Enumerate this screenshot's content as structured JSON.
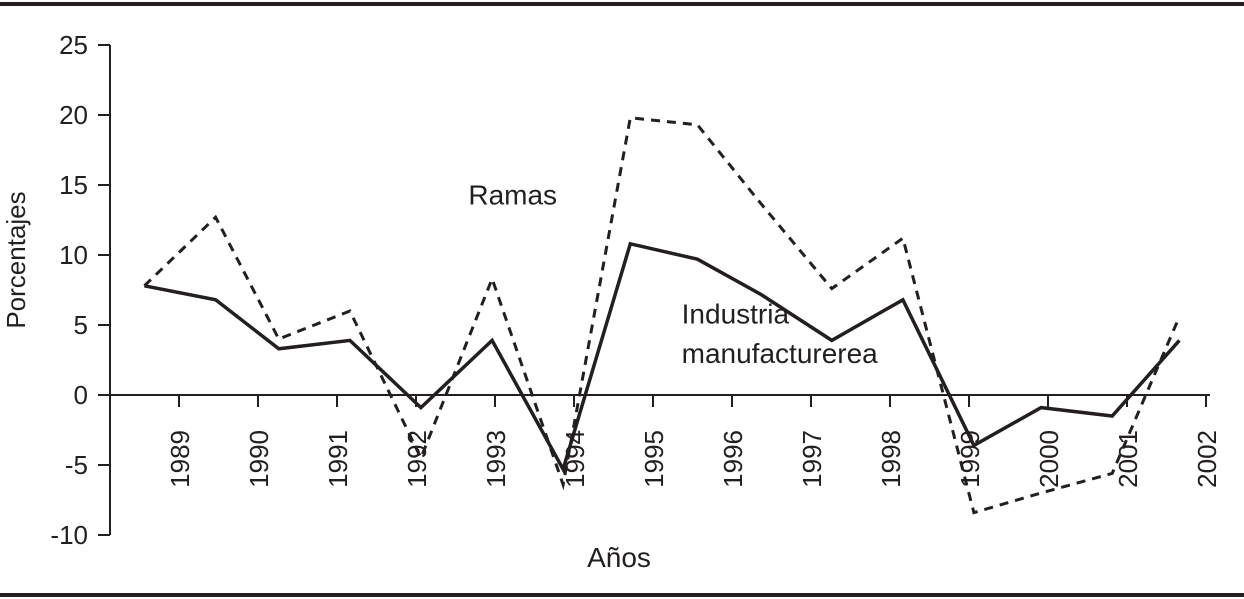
{
  "chart_data": {
    "type": "line",
    "title": "",
    "xlabel": "Años",
    "ylabel": "Porcentajes",
    "ylim": [
      -10,
      25
    ],
    "yticks": [
      25,
      20,
      15,
      10,
      5,
      0,
      -5,
      -10
    ],
    "xticks": [
      "1989",
      "1990",
      "1991",
      "1992",
      "1993",
      "1994",
      "1995",
      "1996",
      "1997",
      "1998",
      "1999",
      "2000",
      "2001",
      "2002"
    ],
    "grid": false,
    "series": [
      {
        "name": "Industria manufacturerea",
        "style": "solid",
        "color": "#231f20",
        "points": [
          [
            1988.55,
            7.8
          ],
          [
            1989.45,
            6.8
          ],
          [
            1990.25,
            3.3
          ],
          [
            1991.15,
            3.9
          ],
          [
            1992.05,
            -0.9
          ],
          [
            1992.95,
            3.9
          ],
          [
            1993.85,
            -5.3
          ],
          [
            1994.7,
            10.8
          ],
          [
            1995.55,
            9.7
          ],
          [
            1996.35,
            7.2
          ],
          [
            1997.25,
            3.9
          ],
          [
            1998.15,
            6.8
          ],
          [
            1999.05,
            -3.6
          ],
          [
            1999.9,
            -0.9
          ],
          [
            2000.8,
            -1.5
          ],
          [
            2001.65,
            3.9
          ]
        ]
      },
      {
        "name": "Ramas",
        "style": "dashed",
        "color": "#231f20",
        "points": [
          [
            1988.55,
            7.8
          ],
          [
            1989.45,
            12.7
          ],
          [
            1990.25,
            4.0
          ],
          [
            1991.15,
            6.0
          ],
          [
            1992.05,
            -4.5
          ],
          [
            1992.95,
            8.3
          ],
          [
            1993.85,
            -6.4
          ],
          [
            1994.7,
            19.8
          ],
          [
            1995.55,
            19.3
          ],
          [
            1996.35,
            13.7
          ],
          [
            1997.25,
            7.6
          ],
          [
            1998.15,
            11.2
          ],
          [
            1999.05,
            -8.4
          ],
          [
            1999.9,
            -7.0
          ],
          [
            2000.8,
            -5.6
          ],
          [
            2001.65,
            5.6
          ]
        ]
      }
    ],
    "annotations": [
      {
        "text": "Ramas",
        "x": 1992.65,
        "y": 13.6
      },
      {
        "text": "Industria",
        "x": 1995.35,
        "y": 5.1
      },
      {
        "text": "manufacturerea",
        "x": 1995.35,
        "y": 2.3
      }
    ]
  }
}
